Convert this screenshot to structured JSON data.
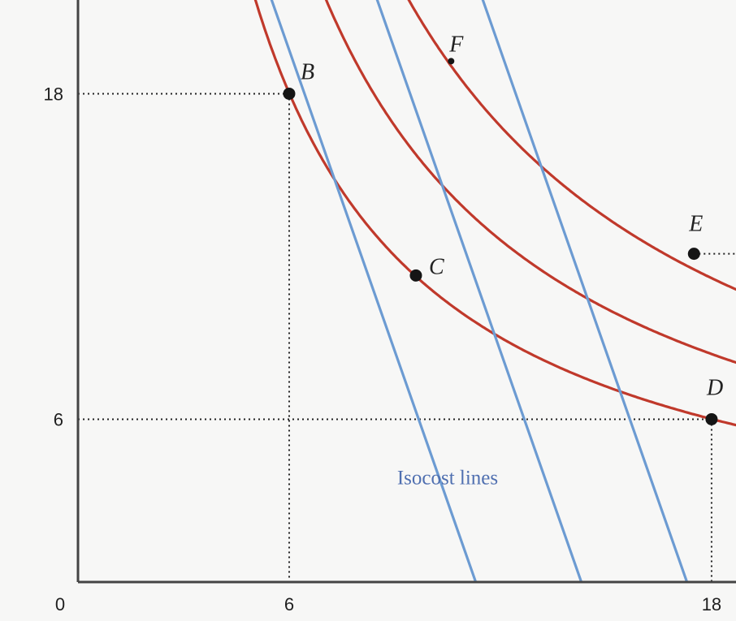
{
  "chart_data": {
    "type": "line",
    "title": "",
    "xlabel": "",
    "ylabel": "",
    "xlim": [
      0,
      22
    ],
    "ylim": [
      0,
      27
    ],
    "origin_label": "0",
    "x_ticks": [
      {
        "value": 6,
        "label": "6"
      },
      {
        "value": 18,
        "label": "18"
      }
    ],
    "y_ticks": [
      {
        "value": 6,
        "label": "6"
      },
      {
        "value": 18,
        "label": "18"
      }
    ],
    "isoquants": [
      {
        "k": 10.4
      },
      {
        "k": 12.3
      },
      {
        "k": 14.2
      }
    ],
    "isocost_lines": [
      {
        "x_intercept": 11.3
      },
      {
        "x_intercept": 14.3
      },
      {
        "x_intercept": 17.3
      }
    ],
    "isocost_slope": -3.7,
    "points": [
      {
        "label": "B",
        "x": 6,
        "y": 18
      },
      {
        "label": "C",
        "x": 9.6,
        "y": 11.3
      },
      {
        "label": "D",
        "x": 18,
        "y": 6
      },
      {
        "label": "E",
        "x": 17.5,
        "y": 12.1
      },
      {
        "label": "F",
        "x": 10.6,
        "y": 19.2
      }
    ],
    "annotations": [
      {
        "text": "Isocost lines",
        "x": 10.5,
        "y": 3.6
      }
    ],
    "colors": {
      "isoquant": "#c0392b",
      "isocost": "#6c9bd2",
      "annotation": "#4f6fb0",
      "guide": "#222222",
      "axis": "#444444"
    }
  }
}
